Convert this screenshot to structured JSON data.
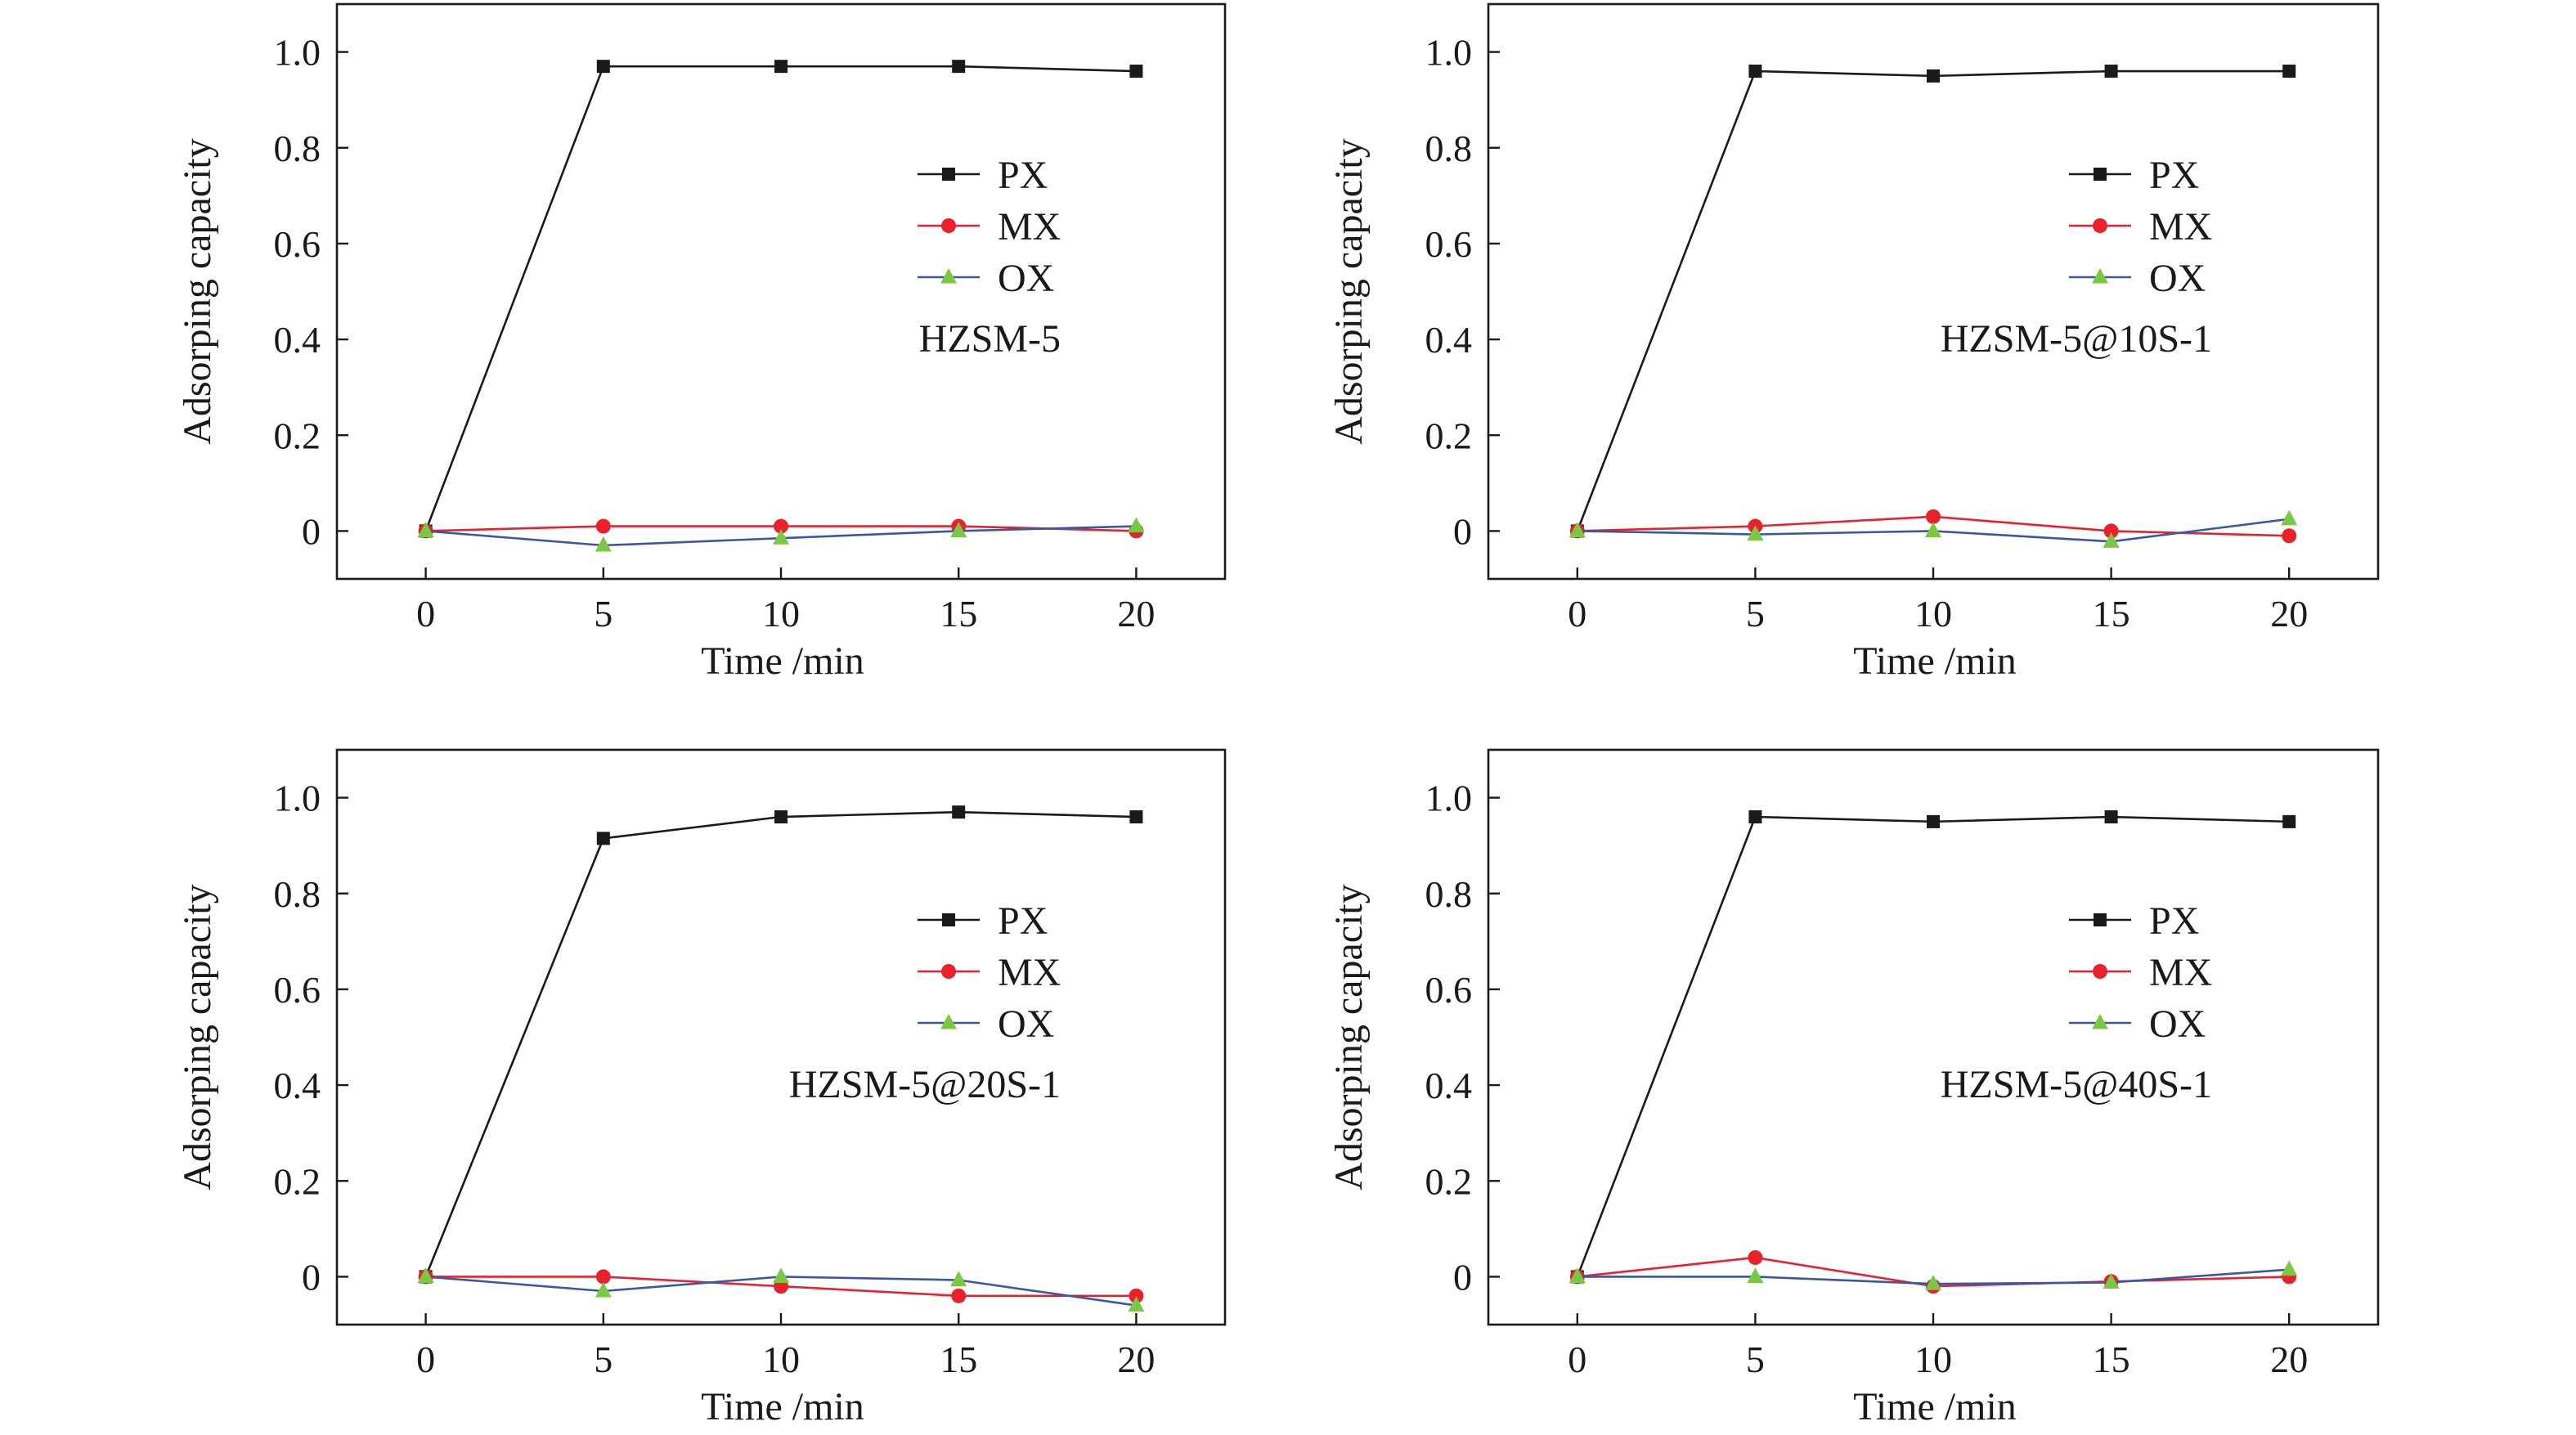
{
  "colors": {
    "PX": "#1a1a1a",
    "MX": "#e8212b",
    "OX": "#3a57a7",
    "OX_marker": "#7ac943"
  },
  "chart_data": [
    {
      "type": "line",
      "annotation": "HZSM-5",
      "xlabel": "Time /min",
      "ylabel": "Adsorping capacity",
      "x": [
        0,
        5,
        10,
        15,
        20
      ],
      "xlim": [
        -2.5,
        22.5
      ],
      "ylim": [
        -0.1,
        1.1
      ],
      "xticks": [
        "0",
        "5",
        "10",
        "15",
        "20"
      ],
      "yticks": [
        "0",
        "0.2",
        "0.4",
        "0.6",
        "0.8",
        "1.0"
      ],
      "legend_position": "upper-right",
      "series": [
        {
          "name": "PX",
          "marker": "square",
          "values": [
            0,
            0.97,
            0.97,
            0.97,
            0.96
          ]
        },
        {
          "name": "MX",
          "marker": "circle",
          "values": [
            0,
            0.01,
            0.01,
            0.01,
            0.0
          ]
        },
        {
          "name": "OX",
          "marker": "triangle",
          "values": [
            0,
            -0.03,
            -0.015,
            0.0,
            0.01
          ]
        }
      ]
    },
    {
      "type": "line",
      "annotation": "HZSM-5@10S-1",
      "xlabel": "Time /min",
      "ylabel": "Adsorping capacity",
      "x": [
        0,
        5,
        10,
        15,
        20
      ],
      "xlim": [
        -2.5,
        22.5
      ],
      "ylim": [
        -0.1,
        1.1
      ],
      "xticks": [
        "0",
        "5",
        "10",
        "15",
        "20"
      ],
      "yticks": [
        "0",
        "0.2",
        "0.4",
        "0.6",
        "0.8",
        "1.0"
      ],
      "legend_position": "upper-right",
      "series": [
        {
          "name": "PX",
          "marker": "square",
          "values": [
            0,
            0.96,
            0.95,
            0.96,
            0.96
          ]
        },
        {
          "name": "MX",
          "marker": "circle",
          "values": [
            0,
            0.01,
            0.03,
            0.0,
            -0.01
          ]
        },
        {
          "name": "OX",
          "marker": "triangle",
          "values": [
            0,
            -0.007,
            0.0,
            -0.022,
            0.025
          ]
        }
      ]
    },
    {
      "type": "line",
      "annotation": "HZSM-5@20S-1",
      "xlabel": "Time /min",
      "ylabel": "Adsorping capacity",
      "x": [
        0,
        5,
        10,
        15,
        20
      ],
      "xlim": [
        -2.5,
        22.5
      ],
      "ylim": [
        -0.1,
        1.1
      ],
      "xticks": [
        "0",
        "5",
        "10",
        "15",
        "20"
      ],
      "yticks": [
        "0",
        "0.2",
        "0.4",
        "0.6",
        "0.8",
        "1.0"
      ],
      "legend_position": "upper-right",
      "series": [
        {
          "name": "PX",
          "marker": "square",
          "values": [
            0,
            0.915,
            0.96,
            0.97,
            0.96
          ]
        },
        {
          "name": "MX",
          "marker": "circle",
          "values": [
            0,
            0.0,
            -0.02,
            -0.04,
            -0.04
          ]
        },
        {
          "name": "OX",
          "marker": "triangle",
          "values": [
            0,
            -0.03,
            0.0,
            -0.007,
            -0.06
          ]
        }
      ]
    },
    {
      "type": "line",
      "annotation": "HZSM-5@40S-1",
      "xlabel": "Time /min",
      "ylabel": "Adsorping capacity",
      "x": [
        0,
        5,
        10,
        15,
        20
      ],
      "xlim": [
        -2.5,
        22.5
      ],
      "ylim": [
        -0.1,
        1.1
      ],
      "xticks": [
        "0",
        "5",
        "10",
        "15",
        "20"
      ],
      "yticks": [
        "0",
        "0.2",
        "0.4",
        "0.6",
        "0.8",
        "1.0"
      ],
      "legend_position": "upper-right",
      "series": [
        {
          "name": "PX",
          "marker": "square",
          "values": [
            0,
            0.96,
            0.95,
            0.96,
            0.95
          ]
        },
        {
          "name": "MX",
          "marker": "circle",
          "values": [
            0,
            0.04,
            -0.02,
            -0.01,
            0.0
          ]
        },
        {
          "name": "OX",
          "marker": "triangle",
          "values": [
            0,
            0.0,
            -0.015,
            -0.012,
            0.015
          ]
        }
      ]
    }
  ]
}
